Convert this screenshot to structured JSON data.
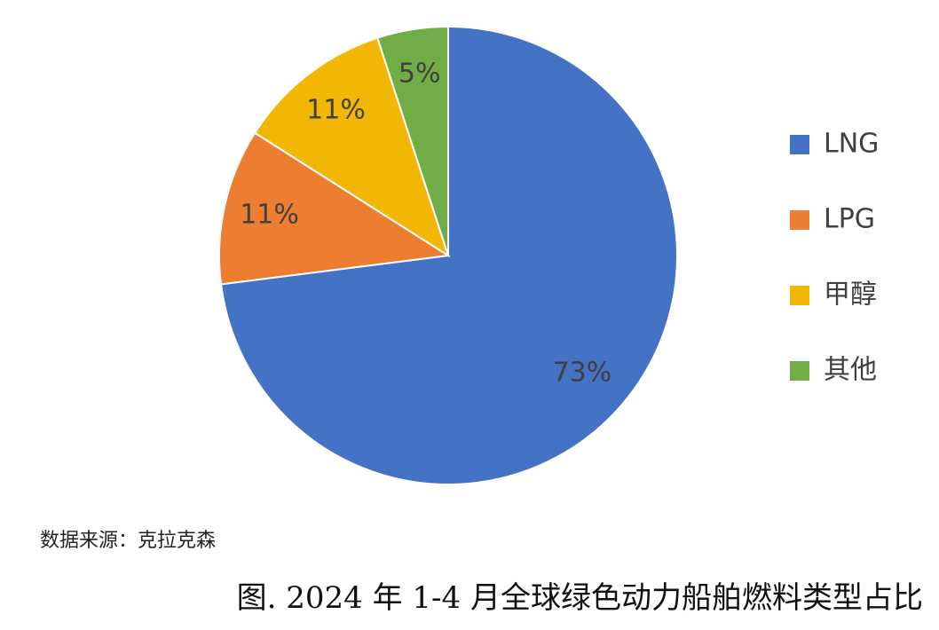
{
  "chart_data": {
    "type": "pie",
    "title": "图. 2024 年 1-4 月全球绿色动力船舶燃料类型占比",
    "source": "数据来源：克拉克森",
    "categories": [
      "LNG",
      "LPG",
      "甲醇",
      "其他"
    ],
    "values": [
      73,
      11,
      11,
      5
    ],
    "value_labels": [
      "73%",
      "11%",
      "11%",
      "5%"
    ],
    "colors": [
      "#4472c4",
      "#ed7d31",
      "#f2b705",
      "#70ad47"
    ],
    "legend": "right"
  }
}
